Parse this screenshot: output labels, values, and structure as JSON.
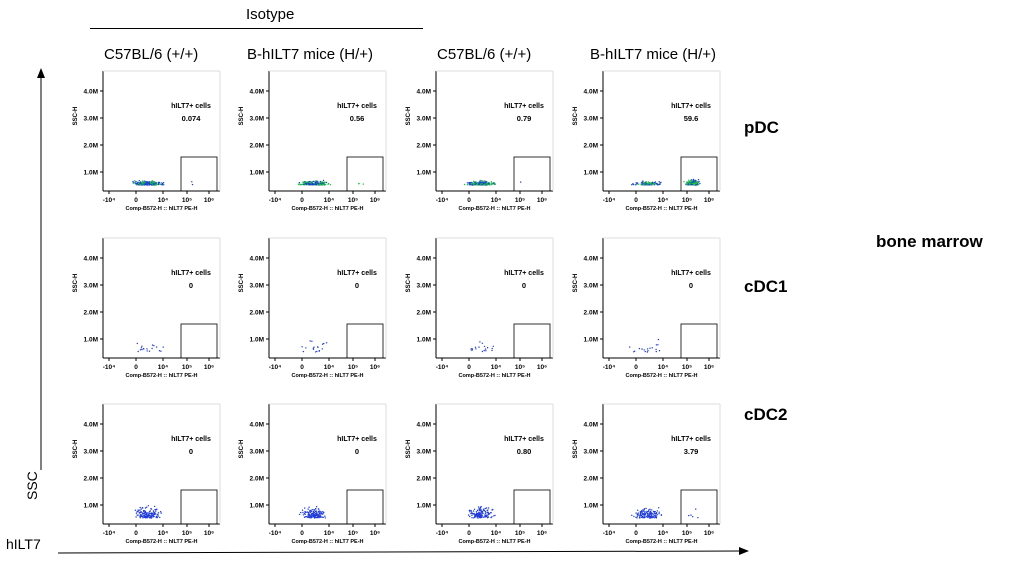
{
  "header": {
    "group": "Isotype"
  },
  "columns": [
    "C57BL/6 (+/+)",
    "B-hILT7 mice (H/+)",
    "C57BL/6 (+/+)",
    "B-hILT7 mice (H/+)"
  ],
  "rows": [
    "pDC",
    "cDC1",
    "cDC2"
  ],
  "tissue": "bone marrow",
  "axes": {
    "global_y": "SSC",
    "global_x": "hILT7"
  },
  "chart_data": {
    "type": "scatter",
    "panel_xlabel": "Comp-B572-H :: hILT7 PE-H",
    "panel_ylabel": "SSC-H",
    "gate_label": "hILT7+ cells",
    "y_ticks": [
      "4.0M",
      "3.0M",
      "2.0M",
      "1.0M"
    ],
    "x_ticks": [
      "-10⁴",
      "0",
      "10⁴",
      "10⁵",
      "10⁶"
    ],
    "gate_percent": [
      [
        "0.074",
        "0.56",
        "0.79",
        "59.6"
      ],
      [
        "0",
        "0",
        "0",
        "0"
      ],
      [
        "0",
        "0",
        "0.80",
        "3.79"
      ]
    ],
    "colors": {
      "dots": "#1f3bd8",
      "dense": "#19c23c",
      "axis": "#000000"
    }
  }
}
